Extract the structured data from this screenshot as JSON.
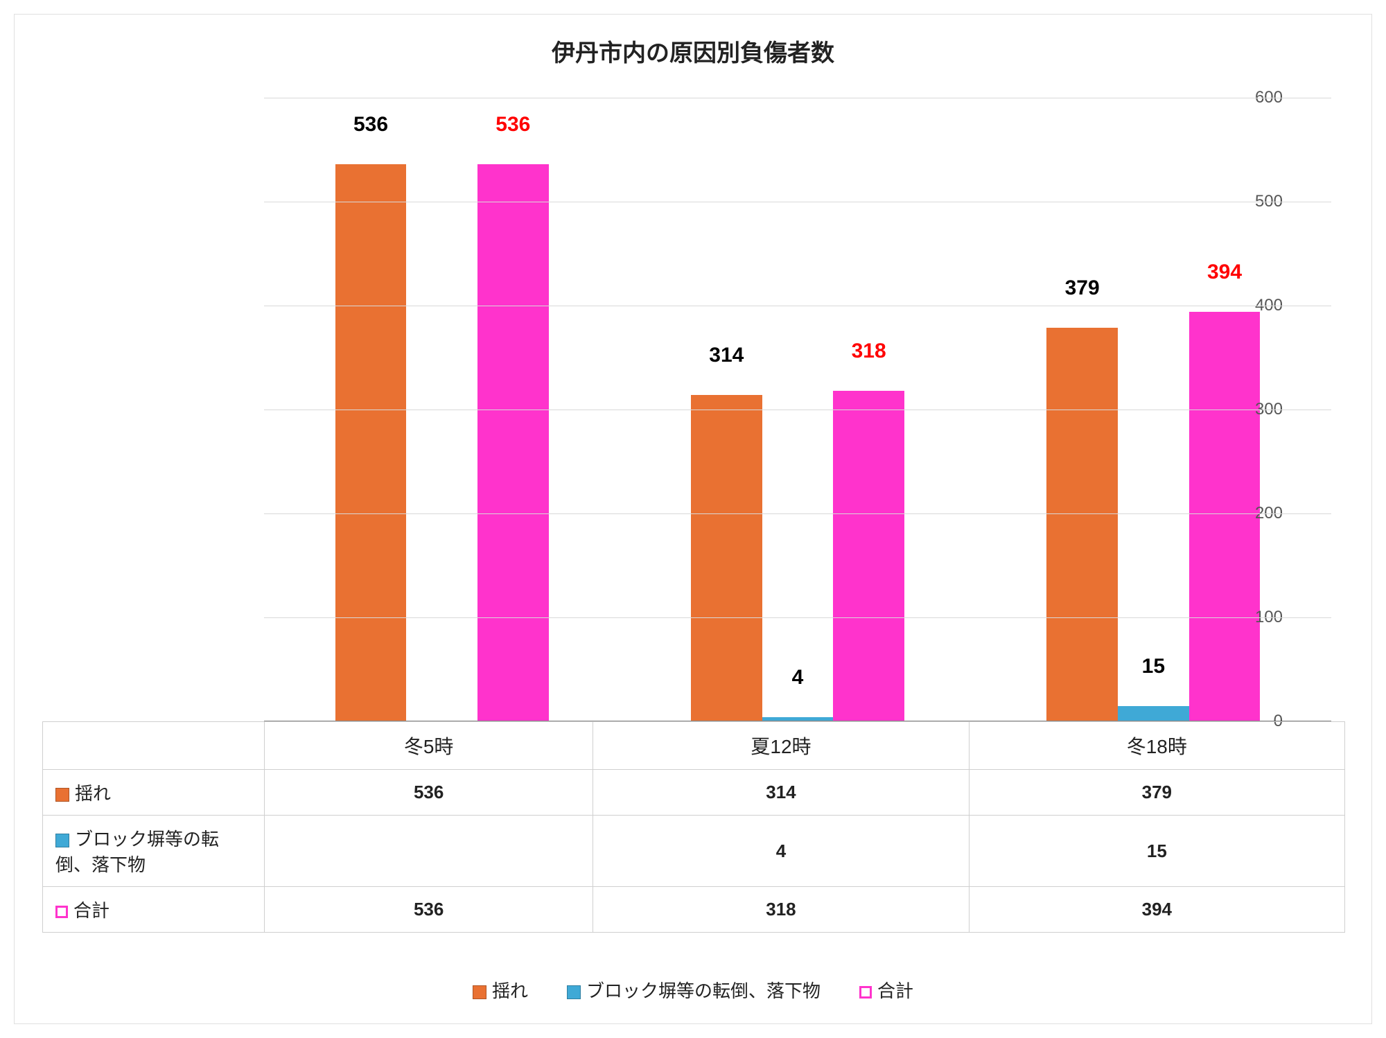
{
  "chart": {
    "type": "bar",
    "title": "伊丹市内の原因別負傷者数",
    "title_fontsize": 34,
    "background_color": "#ffffff",
    "grid_color": "#d9d9d9",
    "axis_label_color": "#555555",
    "axis_fontsize": 24,
    "categories": [
      "冬5時",
      "夏12時",
      "冬18時"
    ],
    "ylim": [
      0,
      600
    ],
    "ytick_step": 100,
    "yticks": [
      0,
      100,
      200,
      300,
      400,
      500,
      600
    ],
    "bar_width_ratio": 0.2,
    "group_gap_ratio": 0.1,
    "series": [
      {
        "name": "揺れ",
        "color": "#e97132",
        "values": [
          536,
          314,
          379
        ],
        "label_color": "#000000"
      },
      {
        "name": "ブロック塀等の転倒、落下物",
        "color": "#3fa9d6",
        "values": [
          null,
          4,
          15
        ],
        "label_color": "#000000"
      },
      {
        "name": "合計",
        "color": "#ff33cc",
        "values": [
          536,
          318,
          394
        ],
        "label_color": "#ff0000"
      }
    ],
    "data_label_fontsize": 30,
    "category_fontsize": 28,
    "table_fontsize": 26,
    "legend_fontsize": 26,
    "legend": [
      {
        "label": "揺れ",
        "swatch_color": "#e97132",
        "swatch_style": "fill"
      },
      {
        "label": "ブロック塀等の転倒、落下物",
        "swatch_color": "#3fa9d6",
        "swatch_style": "fill"
      },
      {
        "label": "合計",
        "swatch_color": "#ff33cc",
        "swatch_style": "outline"
      }
    ]
  }
}
